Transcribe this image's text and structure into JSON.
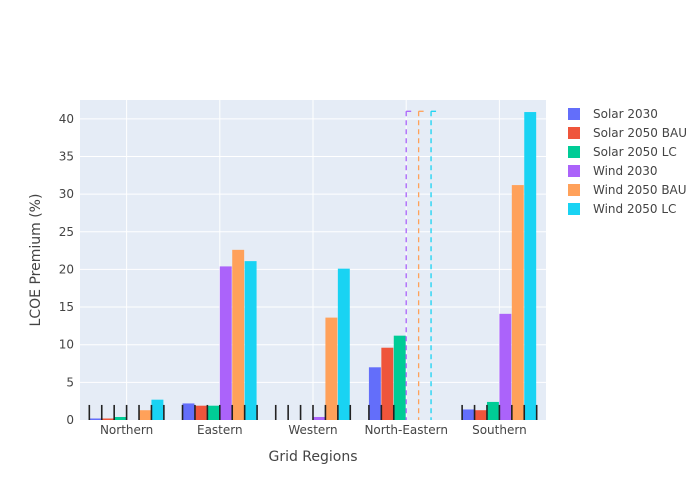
{
  "chart_data": {
    "type": "bar",
    "xlabel": "Grid Regions",
    "ylabel": "LCOE Premium (%)",
    "categories": [
      "Northern",
      "Eastern",
      "Western",
      "North-Eastern",
      "Southern"
    ],
    "ylim": [
      0,
      42.5
    ],
    "yticks": [
      0,
      5,
      10,
      15,
      20,
      25,
      30,
      35,
      40
    ],
    "grid": true,
    "legend_position": "right",
    "series": [
      {
        "name": "Solar 2030",
        "color": "#636efa",
        "values": [
          0.2,
          2.2,
          0.0,
          7.0,
          1.4
        ]
      },
      {
        "name": "Solar 2050 BAU",
        "color": "#ef553b",
        "values": [
          0.2,
          1.9,
          0.0,
          9.6,
          1.3
        ]
      },
      {
        "name": "Solar 2050 LC",
        "color": "#00cc96",
        "values": [
          0.4,
          1.9,
          0.0,
          11.2,
          2.4
        ]
      },
      {
        "name": "Wind 2030",
        "color": "#ab63fa",
        "values": [
          0.0,
          20.4,
          0.4,
          null,
          14.1
        ]
      },
      {
        "name": "Wind 2050 BAU",
        "color": "#ffa15a",
        "values": [
          1.3,
          22.6,
          13.6,
          null,
          31.2
        ]
      },
      {
        "name": "Wind 2050 LC",
        "color": "#19d3f3",
        "values": [
          2.7,
          21.1,
          20.1,
          null,
          40.9
        ]
      }
    ],
    "error_bars": {
      "Northern": [
        2,
        2,
        2,
        2,
        2,
        2
      ],
      "Eastern": [
        2,
        2,
        2,
        2,
        2,
        2
      ],
      "Western": [
        2,
        2,
        2,
        2,
        2,
        2
      ],
      "North-Eastern": [
        2,
        2,
        2,
        null,
        null,
        null
      ],
      "Southern": [
        2,
        2,
        2,
        2,
        2,
        2
      ]
    },
    "dashed_outlines": {
      "category": "North-Eastern",
      "series": [
        "Wind 2030",
        "Wind 2050 BAU",
        "Wind 2050 LC"
      ],
      "value": 41
    }
  }
}
